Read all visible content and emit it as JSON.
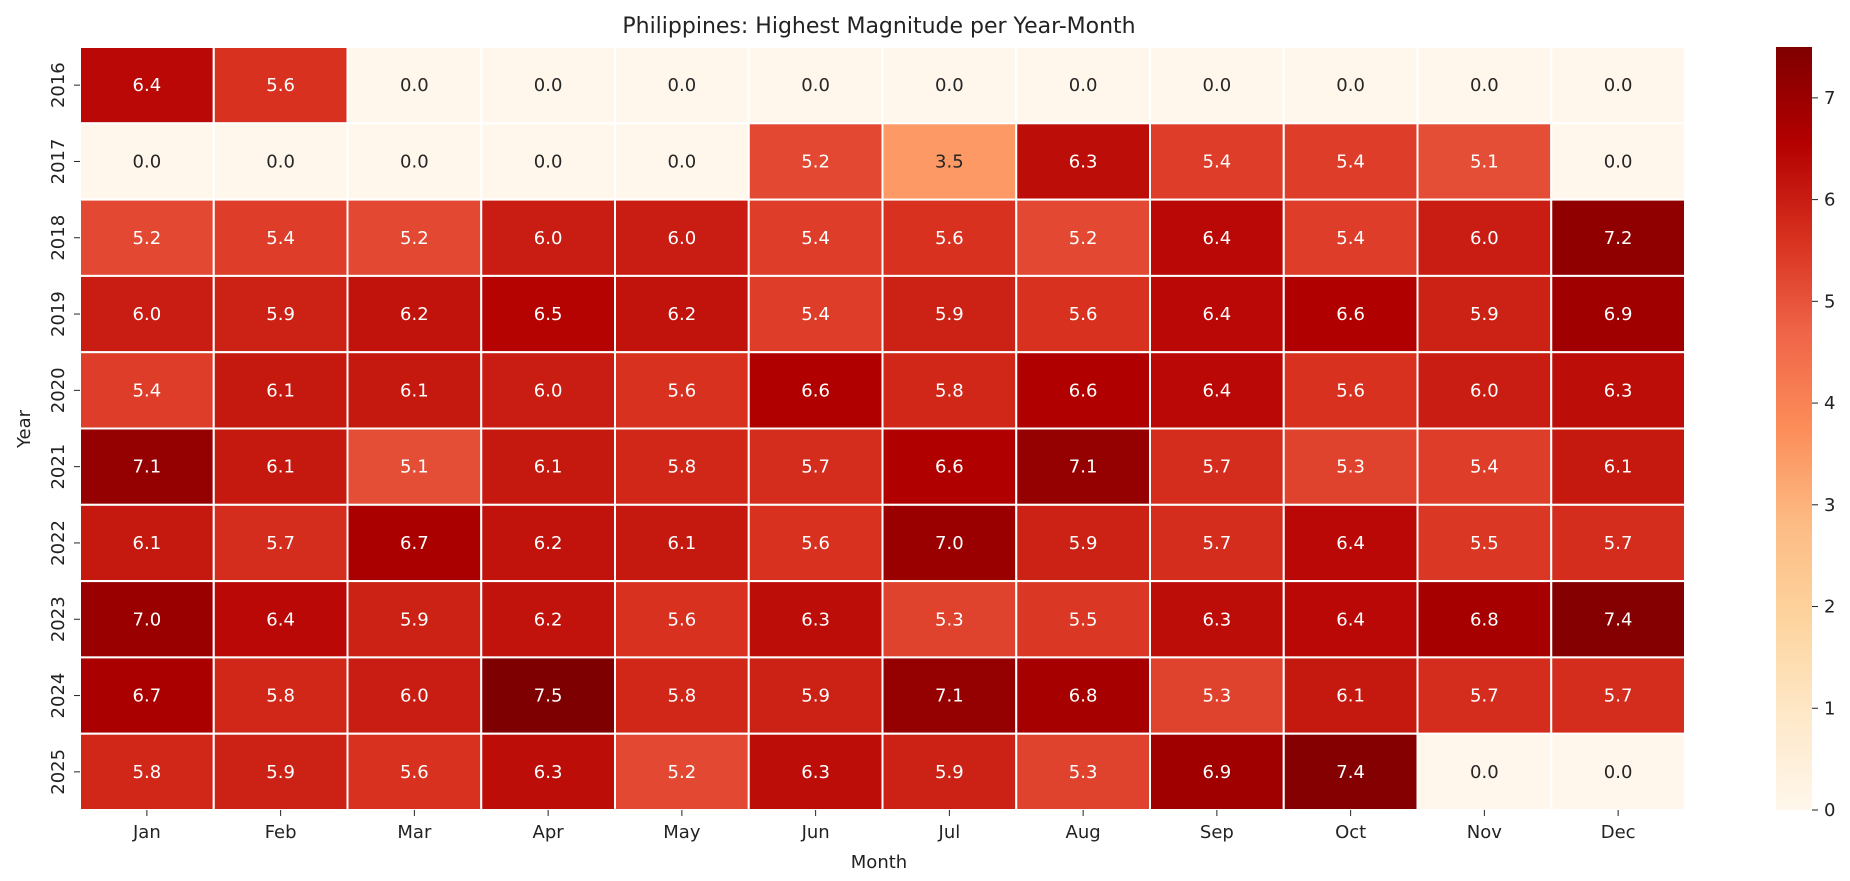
{
  "chart_data": {
    "type": "heatmap",
    "title": "Philippines: Highest Magnitude per Year-Month",
    "xlabel": "Month",
    "ylabel": "Year",
    "x_categories": [
      "Jan",
      "Feb",
      "Mar",
      "Apr",
      "May",
      "Jun",
      "Jul",
      "Aug",
      "Sep",
      "Oct",
      "Nov",
      "Dec"
    ],
    "y_categories": [
      "2016",
      "2017",
      "2018",
      "2019",
      "2020",
      "2021",
      "2022",
      "2023",
      "2024",
      "2025"
    ],
    "values": [
      [
        6.4,
        5.6,
        0.0,
        0.0,
        0.0,
        0.0,
        0.0,
        0.0,
        0.0,
        0.0,
        0.0,
        0.0
      ],
      [
        0.0,
        0.0,
        0.0,
        0.0,
        0.0,
        5.2,
        3.5,
        6.3,
        5.4,
        5.4,
        5.1,
        0.0
      ],
      [
        5.2,
        5.4,
        5.2,
        6.0,
        6.0,
        5.4,
        5.6,
        5.2,
        6.4,
        5.4,
        6.0,
        7.2
      ],
      [
        6.0,
        5.9,
        6.2,
        6.5,
        6.2,
        5.4,
        5.9,
        5.6,
        6.4,
        6.6,
        5.9,
        6.9
      ],
      [
        5.4,
        6.1,
        6.1,
        6.0,
        5.6,
        6.6,
        5.8,
        6.6,
        6.4,
        5.6,
        6.0,
        6.3
      ],
      [
        7.1,
        6.1,
        5.1,
        6.1,
        5.8,
        5.7,
        6.6,
        7.1,
        5.7,
        5.3,
        5.4,
        6.1
      ],
      [
        6.1,
        5.7,
        6.7,
        6.2,
        6.1,
        5.6,
        7.0,
        5.9,
        5.7,
        6.4,
        5.5,
        5.7
      ],
      [
        7.0,
        6.4,
        5.9,
        6.2,
        5.6,
        6.3,
        5.3,
        5.5,
        6.3,
        6.4,
        6.8,
        7.4
      ],
      [
        6.7,
        5.8,
        6.0,
        7.5,
        5.8,
        5.9,
        7.1,
        6.8,
        5.3,
        6.1,
        5.7,
        5.7
      ],
      [
        5.8,
        5.9,
        5.6,
        6.3,
        5.2,
        6.3,
        5.9,
        5.3,
        6.9,
        7.4,
        0.0,
        0.0
      ]
    ],
    "value_range": [
      0,
      7.5
    ],
    "colormap": "OrRd",
    "colorbar_ticks": [
      "0",
      "1",
      "2",
      "3",
      "4",
      "5",
      "6",
      "7"
    ],
    "grid": false
  }
}
